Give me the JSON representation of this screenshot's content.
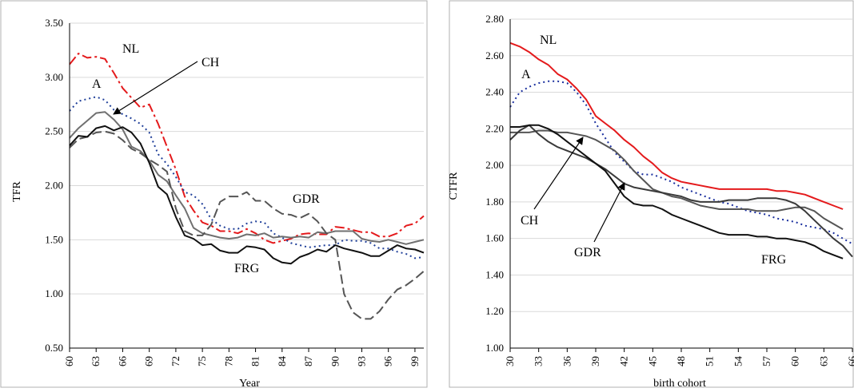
{
  "chart_data": [
    {
      "type": "line",
      "title": "",
      "xlabel": "Year",
      "ylabel": "TFR",
      "xlim": [
        60,
        100
      ],
      "ylim": [
        0.5,
        3.5
      ],
      "x_ticks": [
        "60",
        "63",
        "66",
        "69",
        "72",
        "75",
        "78",
        "81",
        "84",
        "87",
        "90",
        "93",
        "96",
        "99"
      ],
      "y_ticks": [
        "0.50",
        "1.00",
        "1.50",
        "2.00",
        "2.50",
        "3.00",
        "3.50"
      ],
      "grid": true,
      "annotations": [
        {
          "text": "NL",
          "color": "#000000"
        },
        {
          "text": "CH",
          "color": "#000000"
        },
        {
          "text": "A",
          "color": "#000000"
        },
        {
          "text": "GDR",
          "color": "#000000"
        },
        {
          "text": "FRG",
          "color": "#000000"
        }
      ],
      "series": [
        {
          "id": "NL",
          "color": "#e41a1c",
          "dash": "dashdot",
          "x": [
            60,
            61,
            62,
            63,
            64,
            65,
            66,
            67,
            68,
            69,
            70,
            71,
            72,
            73,
            74,
            75,
            76,
            77,
            78,
            79,
            80,
            81,
            82,
            83,
            84,
            85,
            86,
            87,
            88,
            89,
            90,
            91,
            92,
            93,
            94,
            95,
            96,
            97,
            98,
            99,
            100
          ],
          "y": [
            3.12,
            3.22,
            3.18,
            3.19,
            3.17,
            3.04,
            2.9,
            2.81,
            2.72,
            2.75,
            2.57,
            2.36,
            2.15,
            1.9,
            1.77,
            1.66,
            1.63,
            1.58,
            1.58,
            1.56,
            1.6,
            1.56,
            1.5,
            1.47,
            1.49,
            1.51,
            1.55,
            1.56,
            1.55,
            1.55,
            1.62,
            1.61,
            1.59,
            1.57,
            1.57,
            1.53,
            1.53,
            1.56,
            1.63,
            1.65,
            1.72
          ]
        },
        {
          "id": "A",
          "color": "#1f3f99",
          "dash": "dotted",
          "x": [
            60,
            61,
            62,
            63,
            64,
            65,
            66,
            67,
            68,
            69,
            70,
            71,
            72,
            73,
            74,
            75,
            76,
            77,
            78,
            79,
            80,
            81,
            82,
            83,
            84,
            85,
            86,
            87,
            88,
            89,
            90,
            91,
            92,
            93,
            94,
            95,
            96,
            97,
            98,
            99,
            100
          ],
          "y": [
            2.69,
            2.78,
            2.8,
            2.82,
            2.79,
            2.7,
            2.66,
            2.62,
            2.57,
            2.49,
            2.29,
            2.2,
            2.08,
            1.94,
            1.91,
            1.83,
            1.69,
            1.63,
            1.6,
            1.6,
            1.65,
            1.67,
            1.66,
            1.56,
            1.52,
            1.47,
            1.45,
            1.43,
            1.44,
            1.45,
            1.45,
            1.5,
            1.49,
            1.49,
            1.47,
            1.42,
            1.42,
            1.39,
            1.37,
            1.33,
            1.34
          ]
        },
        {
          "id": "CH",
          "color": "#707070",
          "dash": "solid",
          "x": [
            60,
            61,
            62,
            63,
            64,
            65,
            66,
            67,
            68,
            69,
            70,
            71,
            72,
            73,
            74,
            75,
            76,
            77,
            78,
            79,
            80,
            81,
            82,
            83,
            84,
            85,
            86,
            87,
            88,
            89,
            90,
            91,
            92,
            93,
            94,
            95,
            96,
            97,
            98,
            99,
            100
          ],
          "y": [
            2.44,
            2.53,
            2.6,
            2.67,
            2.68,
            2.61,
            2.52,
            2.36,
            2.32,
            2.23,
            2.1,
            2.04,
            1.91,
            1.79,
            1.61,
            1.56,
            1.54,
            1.52,
            1.51,
            1.52,
            1.55,
            1.54,
            1.56,
            1.52,
            1.53,
            1.52,
            1.53,
            1.52,
            1.57,
            1.56,
            1.58,
            1.58,
            1.58,
            1.51,
            1.49,
            1.48,
            1.5,
            1.48,
            1.46,
            1.48,
            1.5
          ]
        },
        {
          "id": "GDR",
          "color": "#555555",
          "dash": "longdash",
          "x": [
            60,
            61,
            62,
            63,
            64,
            65,
            66,
            67,
            68,
            69,
            70,
            71,
            72,
            73,
            74,
            75,
            76,
            77,
            78,
            79,
            80,
            81,
            82,
            83,
            84,
            85,
            86,
            87,
            88,
            89,
            90,
            91,
            92,
            93,
            94,
            95,
            96,
            97,
            98,
            99,
            100
          ],
          "y": [
            2.35,
            2.43,
            2.45,
            2.49,
            2.5,
            2.48,
            2.42,
            2.34,
            2.3,
            2.24,
            2.19,
            2.13,
            1.79,
            1.58,
            1.54,
            1.54,
            1.64,
            1.85,
            1.9,
            1.9,
            1.94,
            1.86,
            1.86,
            1.79,
            1.74,
            1.73,
            1.7,
            1.74,
            1.67,
            1.56,
            1.5,
            1.0,
            0.83,
            0.77,
            0.77,
            0.84,
            0.95,
            1.04,
            1.08,
            1.14,
            1.21
          ]
        },
        {
          "id": "FRG",
          "color": "#111111",
          "dash": "solid",
          "x": [
            60,
            61,
            62,
            63,
            64,
            65,
            66,
            67,
            68,
            69,
            70,
            71,
            72,
            73,
            74,
            75,
            76,
            77,
            78,
            79,
            80,
            81,
            82,
            83,
            84,
            85,
            86,
            87,
            88,
            89,
            90,
            91,
            92,
            93,
            94,
            95,
            96,
            97,
            98,
            99,
            100
          ],
          "y": [
            2.37,
            2.46,
            2.45,
            2.53,
            2.55,
            2.51,
            2.54,
            2.49,
            2.39,
            2.21,
            1.99,
            1.92,
            1.71,
            1.54,
            1.51,
            1.45,
            1.46,
            1.4,
            1.38,
            1.38,
            1.44,
            1.43,
            1.41,
            1.33,
            1.29,
            1.28,
            1.34,
            1.37,
            1.41,
            1.39,
            1.45,
            1.42,
            1.4,
            1.38,
            1.35,
            1.35,
            1.4,
            1.45,
            1.42,
            1.41,
            1.38
          ]
        }
      ]
    },
    {
      "type": "line",
      "title": "",
      "xlabel": "birth cohort",
      "ylabel": "CTFR",
      "xlim": [
        30,
        66
      ],
      "ylim": [
        1.0,
        2.8
      ],
      "x_ticks": [
        "30",
        "33",
        "36",
        "39",
        "42",
        "45",
        "48",
        "51",
        "54",
        "57",
        "60",
        "63",
        "66"
      ],
      "y_ticks": [
        "1.00",
        "1.20",
        "1.40",
        "1.60",
        "1.80",
        "2.00",
        "2.20",
        "2.40",
        "2.60",
        "2.80"
      ],
      "grid": true,
      "annotations": [
        {
          "text": "NL",
          "color": "#000000"
        },
        {
          "text": "A",
          "color": "#333333"
        },
        {
          "text": "CH",
          "color": "#000000"
        },
        {
          "text": "GDR",
          "color": "#000000"
        },
        {
          "text": "FRG",
          "color": "#000000"
        }
      ],
      "series": [
        {
          "id": "NL",
          "color": "#e41a1c",
          "dash": "solid",
          "x": [
            30,
            31,
            32,
            33,
            34,
            35,
            36,
            37,
            38,
            39,
            40,
            41,
            42,
            43,
            44,
            45,
            46,
            47,
            48,
            49,
            50,
            51,
            52,
            53,
            54,
            55,
            56,
            57,
            58,
            59,
            60,
            61,
            62,
            63,
            64,
            65
          ],
          "y": [
            2.67,
            2.65,
            2.62,
            2.58,
            2.55,
            2.5,
            2.47,
            2.42,
            2.36,
            2.27,
            2.23,
            2.19,
            2.14,
            2.1,
            2.05,
            2.01,
            1.96,
            1.93,
            1.91,
            1.9,
            1.89,
            1.88,
            1.87,
            1.87,
            1.87,
            1.87,
            1.87,
            1.87,
            1.86,
            1.86,
            1.85,
            1.84,
            1.82,
            1.8,
            1.78,
            1.76
          ]
        },
        {
          "id": "A",
          "color": "#1a2f9e",
          "dash": "dotted",
          "x": [
            30,
            31,
            32,
            33,
            34,
            35,
            36,
            37,
            38,
            39,
            40,
            41,
            42,
            43,
            44,
            45,
            46,
            47,
            48,
            49,
            50,
            51,
            52,
            53,
            54,
            55,
            56,
            57,
            58,
            59,
            60,
            61,
            62,
            63,
            64,
            65,
            66
          ],
          "y": [
            2.32,
            2.4,
            2.43,
            2.45,
            2.46,
            2.46,
            2.45,
            2.4,
            2.33,
            2.23,
            2.15,
            2.07,
            2.02,
            1.97,
            1.95,
            1.95,
            1.93,
            1.91,
            1.88,
            1.86,
            1.84,
            1.82,
            1.8,
            1.79,
            1.77,
            1.75,
            1.74,
            1.73,
            1.71,
            1.7,
            1.69,
            1.67,
            1.66,
            1.65,
            1.63,
            1.6,
            1.57
          ]
        },
        {
          "id": "CH",
          "color": "#555555",
          "dash": "solid",
          "x": [
            30,
            31,
            32,
            33,
            34,
            35,
            36,
            37,
            38,
            39,
            40,
            41,
            42,
            43,
            44,
            45,
            46,
            47,
            48,
            49,
            50,
            51,
            52,
            53,
            54,
            55,
            56,
            57,
            58,
            59,
            60,
            61,
            62,
            63,
            64,
            65
          ],
          "y": [
            2.18,
            2.18,
            2.18,
            2.19,
            2.19,
            2.18,
            2.18,
            2.17,
            2.16,
            2.14,
            2.11,
            2.08,
            2.03,
            1.97,
            1.92,
            1.87,
            1.85,
            1.83,
            1.82,
            1.8,
            1.78,
            1.77,
            1.76,
            1.76,
            1.76,
            1.76,
            1.75,
            1.75,
            1.75,
            1.76,
            1.77,
            1.77,
            1.75,
            1.71,
            1.68,
            1.65
          ]
        },
        {
          "id": "GDR",
          "color": "#3a3a3a",
          "dash": "solid",
          "x": [
            30,
            31,
            32,
            33,
            34,
            35,
            36,
            37,
            38,
            39,
            40,
            41,
            42,
            43,
            44,
            45,
            46,
            47,
            48,
            49,
            50,
            51,
            52,
            53,
            54,
            55,
            56,
            57,
            58,
            59,
            60,
            61,
            62,
            63,
            64,
            65,
            66
          ],
          "y": [
            2.14,
            2.19,
            2.22,
            2.17,
            2.13,
            2.1,
            2.08,
            2.06,
            2.04,
            2.01,
            1.98,
            1.94,
            1.9,
            1.88,
            1.87,
            1.86,
            1.85,
            1.84,
            1.83,
            1.81,
            1.8,
            1.8,
            1.8,
            1.81,
            1.81,
            1.81,
            1.82,
            1.82,
            1.82,
            1.81,
            1.79,
            1.75,
            1.7,
            1.65,
            1.6,
            1.56,
            1.5
          ]
        },
        {
          "id": "FRG",
          "color": "#111111",
          "dash": "solid",
          "x": [
            30,
            31,
            32,
            33,
            34,
            35,
            36,
            37,
            38,
            39,
            40,
            41,
            42,
            43,
            44,
            45,
            46,
            47,
            48,
            49,
            50,
            51,
            52,
            53,
            54,
            55,
            56,
            57,
            58,
            59,
            60,
            61,
            62,
            63,
            64,
            65
          ],
          "y": [
            2.21,
            2.21,
            2.22,
            2.22,
            2.2,
            2.17,
            2.13,
            2.09,
            2.05,
            2.01,
            1.97,
            1.9,
            1.83,
            1.79,
            1.78,
            1.78,
            1.76,
            1.73,
            1.71,
            1.69,
            1.67,
            1.65,
            1.63,
            1.62,
            1.62,
            1.62,
            1.61,
            1.61,
            1.6,
            1.6,
            1.59,
            1.58,
            1.56,
            1.53,
            1.51,
            1.49
          ]
        }
      ]
    }
  ]
}
